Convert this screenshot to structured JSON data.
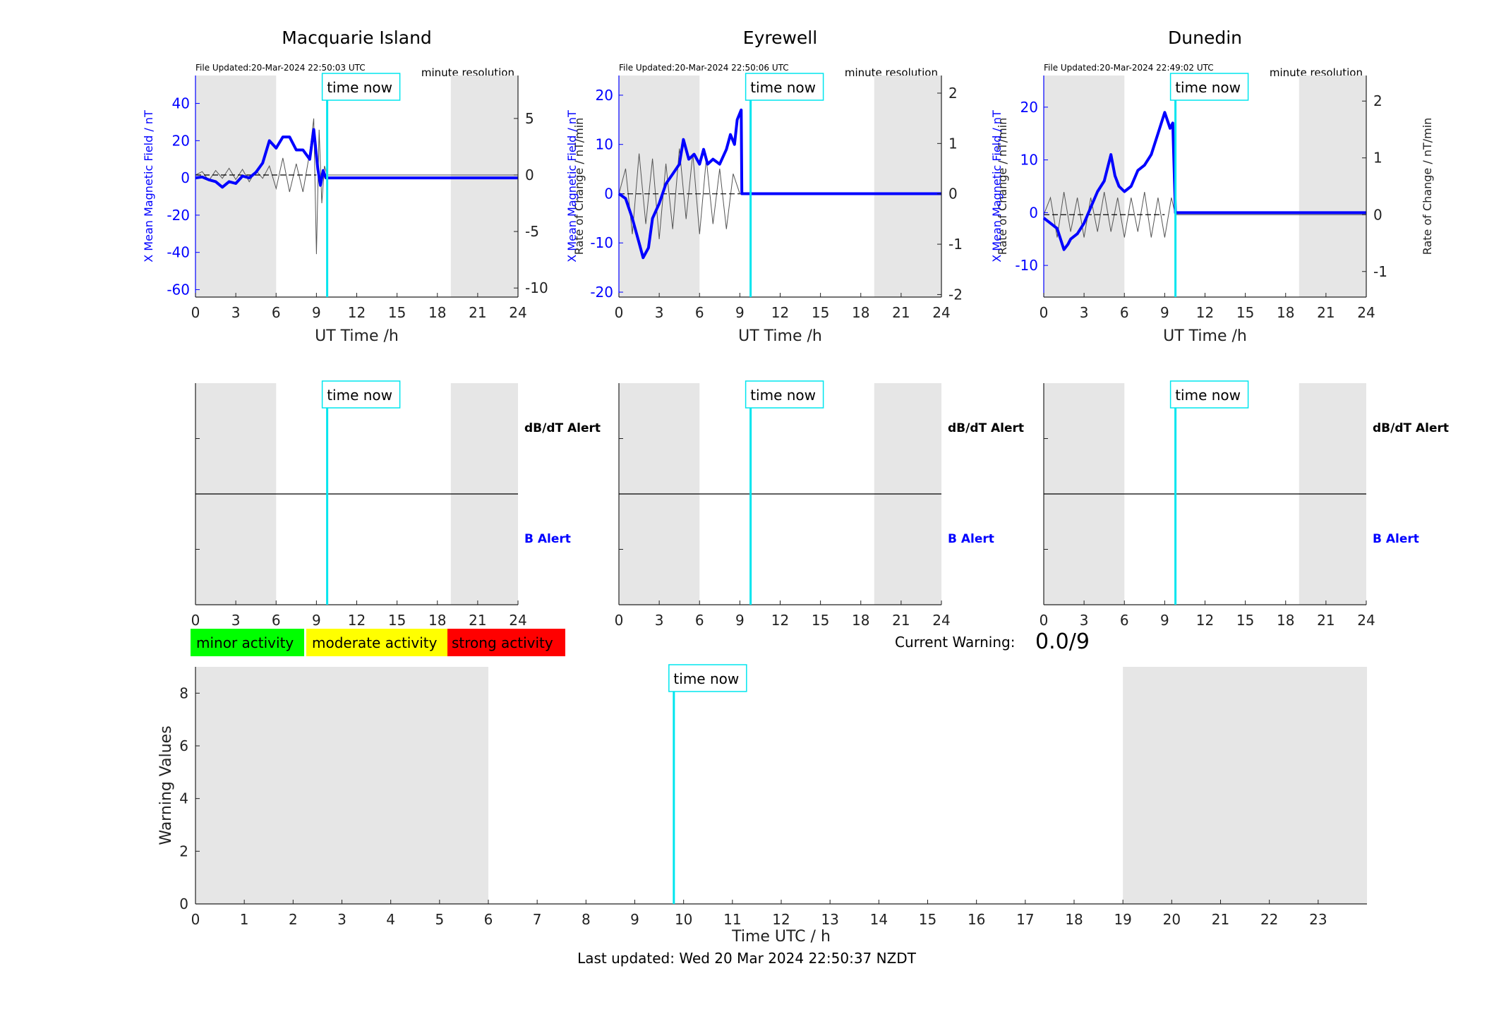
{
  "stations": [
    {
      "name": "Macquarie Island",
      "file_updated": "File Updated:20-Mar-2024 22:50:03 UTC",
      "resolution": "minute resolution",
      "ylabel_left": "X Mean Magnetic Field / nT",
      "ylabel_right": "Rate of Change / nT/min",
      "yticks_left": [
        -60,
        -40,
        -20,
        0,
        20,
        40
      ],
      "ylim_left": [
        -64,
        55
      ],
      "yticks_right": [
        -10,
        -5,
        0,
        5
      ],
      "ylim_right": [
        -10.8,
        8.8
      ],
      "field_points": [
        [
          0,
          0
        ],
        [
          0.5,
          0.5
        ],
        [
          1,
          -1
        ],
        [
          1.5,
          -2
        ],
        [
          2,
          -5
        ],
        [
          2.5,
          -2
        ],
        [
          3,
          -3
        ],
        [
          3.5,
          1
        ],
        [
          4,
          0
        ],
        [
          4.5,
          3
        ],
        [
          5,
          8
        ],
        [
          5.5,
          20
        ],
        [
          6,
          16
        ],
        [
          6.5,
          22
        ],
        [
          7,
          22
        ],
        [
          7.5,
          15
        ],
        [
          8,
          15
        ],
        [
          8.5,
          10
        ],
        [
          8.8,
          26
        ],
        [
          9.1,
          5
        ],
        [
          9.3,
          -4
        ],
        [
          9.5,
          4
        ],
        [
          9.7,
          0
        ],
        [
          24,
          0
        ]
      ],
      "roc_points": [
        [
          0,
          0
        ],
        [
          0.5,
          0.3
        ],
        [
          1,
          -0.5
        ],
        [
          1.5,
          0.4
        ],
        [
          2,
          -0.3
        ],
        [
          2.5,
          0.6
        ],
        [
          3,
          -0.4
        ],
        [
          3.5,
          0.5
        ],
        [
          4,
          -0.6
        ],
        [
          4.5,
          0.4
        ],
        [
          5,
          -0.3
        ],
        [
          5.5,
          0.8
        ],
        [
          6,
          -1.2
        ],
        [
          6.5,
          1.5
        ],
        [
          7,
          -1.5
        ],
        [
          7.5,
          1
        ],
        [
          8,
          -1.5
        ],
        [
          8.5,
          2
        ],
        [
          8.8,
          5
        ],
        [
          9,
          -7
        ],
        [
          9.2,
          4
        ],
        [
          9.4,
          -2.5
        ],
        [
          9.6,
          0.8
        ],
        [
          9.8,
          0
        ],
        [
          24,
          0
        ]
      ]
    },
    {
      "name": "Eyrewell",
      "file_updated": "File Updated:20-Mar-2024 22:50:06 UTC",
      "resolution": "minute resolution",
      "ylabel_left": "X Mean Magnetic Field / nT",
      "ylabel_right": "Rate of Change / nT/min",
      "yticks_left": [
        -20,
        -10,
        0,
        10,
        20
      ],
      "ylim_left": [
        -21,
        24
      ],
      "yticks_right": [
        -2,
        -1,
        0,
        1,
        2
      ],
      "ylim_right": [
        -2.05,
        2.35
      ],
      "field_points": [
        [
          0,
          0
        ],
        [
          0.5,
          -1
        ],
        [
          1,
          -5
        ],
        [
          1.5,
          -10
        ],
        [
          1.8,
          -13
        ],
        [
          2.2,
          -11
        ],
        [
          2.5,
          -5
        ],
        [
          3,
          -2
        ],
        [
          3.5,
          2
        ],
        [
          4,
          4
        ],
        [
          4.5,
          6
        ],
        [
          4.8,
          11
        ],
        [
          5.2,
          7
        ],
        [
          5.6,
          8
        ],
        [
          6,
          6
        ],
        [
          6.3,
          9
        ],
        [
          6.6,
          6
        ],
        [
          7,
          7
        ],
        [
          7.5,
          6
        ],
        [
          8,
          9
        ],
        [
          8.3,
          12
        ],
        [
          8.6,
          10
        ],
        [
          8.8,
          15
        ],
        [
          9.1,
          17
        ],
        [
          9.15,
          0
        ],
        [
          24,
          0
        ]
      ],
      "roc_points": [
        [
          0,
          0
        ],
        [
          0.5,
          0.5
        ],
        [
          1,
          -0.8
        ],
        [
          1.5,
          0.8
        ],
        [
          2,
          -0.6
        ],
        [
          2.5,
          0.7
        ],
        [
          3,
          -0.9
        ],
        [
          3.5,
          0.6
        ],
        [
          4,
          -0.7
        ],
        [
          4.5,
          0.9
        ],
        [
          5,
          -0.5
        ],
        [
          5.5,
          0.8
        ],
        [
          6,
          -0.8
        ],
        [
          6.5,
          0.7
        ],
        [
          7,
          -0.6
        ],
        [
          7.5,
          0.5
        ],
        [
          8,
          -0.7
        ],
        [
          8.5,
          0.4
        ],
        [
          9,
          0
        ],
        [
          24,
          0
        ]
      ]
    },
    {
      "name": "Dunedin",
      "file_updated": "File Updated:20-Mar-2024 22:49:02 UTC",
      "resolution": "minute resolution",
      "ylabel_left": "X Mean Magnetic Field / nT",
      "ylabel_right": "Rate of Change / nT/min",
      "yticks_left": [
        -10,
        0,
        10,
        20
      ],
      "ylim_left": [
        -16,
        26
      ],
      "yticks_right": [
        -1,
        0,
        1,
        2
      ],
      "ylim_right": [
        -1.45,
        2.45
      ],
      "field_points": [
        [
          0,
          -1
        ],
        [
          0.5,
          -2
        ],
        [
          1,
          -3
        ],
        [
          1.5,
          -7
        ],
        [
          1.8,
          -6
        ],
        [
          2,
          -5
        ],
        [
          2.5,
          -4
        ],
        [
          3,
          -2
        ],
        [
          3.5,
          1
        ],
        [
          4,
          4
        ],
        [
          4.5,
          6
        ],
        [
          5,
          11
        ],
        [
          5.3,
          7
        ],
        [
          5.6,
          5
        ],
        [
          6,
          4
        ],
        [
          6.5,
          5
        ],
        [
          7,
          8
        ],
        [
          7.5,
          9
        ],
        [
          8,
          11
        ],
        [
          8.5,
          15
        ],
        [
          9,
          19
        ],
        [
          9.4,
          16
        ],
        [
          9.6,
          17
        ],
        [
          9.8,
          0
        ],
        [
          24,
          0
        ]
      ],
      "roc_points": [
        [
          0,
          0
        ],
        [
          0.5,
          0.3
        ],
        [
          1,
          -0.4
        ],
        [
          1.5,
          0.4
        ],
        [
          2,
          -0.3
        ],
        [
          2.5,
          0.3
        ],
        [
          3,
          -0.4
        ],
        [
          3.5,
          0.3
        ],
        [
          4,
          -0.3
        ],
        [
          4.5,
          0.4
        ],
        [
          5,
          -0.3
        ],
        [
          5.5,
          0.3
        ],
        [
          6,
          -0.4
        ],
        [
          6.5,
          0.3
        ],
        [
          7,
          -0.3
        ],
        [
          7.5,
          0.4
        ],
        [
          8,
          -0.4
        ],
        [
          8.5,
          0.3
        ],
        [
          9,
          -0.4
        ],
        [
          9.5,
          0.3
        ],
        [
          9.8,
          0
        ],
        [
          24,
          0
        ]
      ]
    }
  ],
  "xlabel_top": "UT Time /h",
  "xticks_top": [
    0,
    3,
    6,
    9,
    12,
    15,
    18,
    21,
    24
  ],
  "night_shading": [
    [
      0,
      6
    ],
    [
      19,
      24
    ]
  ],
  "time_now_hour": 9.8,
  "time_now_label": "time now",
  "alert_labels": {
    "dbdt": "dB/dT Alert",
    "b": "B Alert"
  },
  "legend": [
    {
      "label": "minor activity",
      "color": "#00ff00"
    },
    {
      "label": "moderate activity",
      "color": "#ffff00"
    },
    {
      "label": "strong activity",
      "color": "#ff0000"
    }
  ],
  "current_warning": {
    "label": "Current Warning:",
    "value": "0.0/9"
  },
  "chart_data": {
    "type": "line",
    "xlabel": "Time UTC / h",
    "ylabel": "Warning Values",
    "xticks": [
      0,
      1,
      2,
      3,
      4,
      5,
      6,
      7,
      8,
      9,
      10,
      11,
      12,
      13,
      14,
      15,
      16,
      17,
      18,
      19,
      20,
      21,
      22,
      23
    ],
    "xlim": [
      0,
      24
    ],
    "yticks": [
      0,
      2,
      4,
      6,
      8
    ],
    "ylim": [
      0,
      9
    ],
    "night_shading": [
      [
        0,
        6
      ],
      [
        19,
        24
      ]
    ],
    "time_now_hour": 9.8,
    "series": []
  },
  "footer": "Last updated: Wed 20 Mar 2024 22:50:37 NZDT",
  "colors": {
    "field": "#0000ff",
    "axis_blue": "#0000ff",
    "roc": "#555555",
    "cyan": "#00e5ee",
    "shade": "#e6e6e6"
  }
}
